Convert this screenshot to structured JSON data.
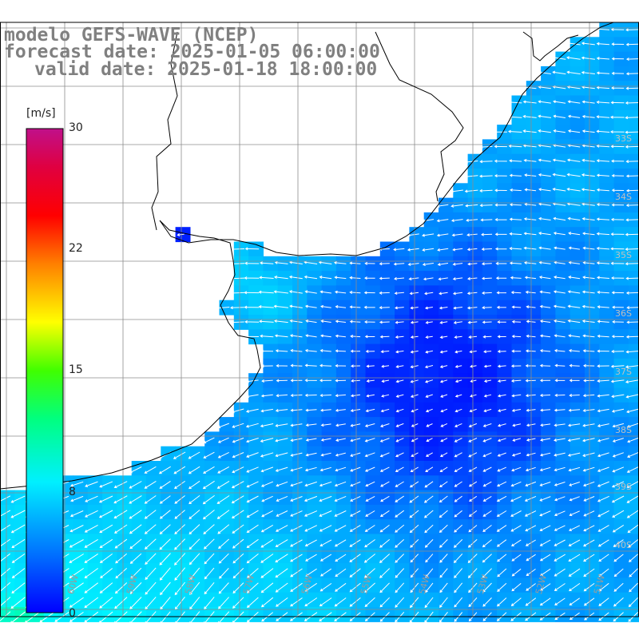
{
  "title": {
    "line1": "modelo GEFS-WAVE (NCEP)",
    "line2": "forecast date: 2025-01-05 06:00:00",
    "line3": "valid date: 2025-01-18 18:00:00"
  },
  "colorbar": {
    "unit": "[m/s]",
    "ticks": [
      "30",
      "22",
      "15",
      "8",
      "0"
    ],
    "min": 0,
    "max": 30,
    "colors": [
      "#0000ff",
      "#0080ff",
      "#00e8ff",
      "#00ff40",
      "#ffff00",
      "#ff8000",
      "#ff0000",
      "#d0004a",
      "#c00080"
    ]
  },
  "map": {
    "variable": "wind speed and direction",
    "lat_labels": [
      "33S",
      "34S",
      "35S",
      "36S",
      "37S",
      "38S",
      "39S",
      "40S"
    ],
    "lon_labels": [
      "60W",
      "59W",
      "58W",
      "57W",
      "56W",
      "55W",
      "54W",
      "53W",
      "52W",
      "51W"
    ],
    "colors": {
      "land": "#ffffff",
      "coast": "#000000",
      "grid": "#8c8c8c",
      "arrows": "#ffffff",
      "calm_wind": "#0000e0",
      "strong_wind": "#00c8ff"
    }
  }
}
